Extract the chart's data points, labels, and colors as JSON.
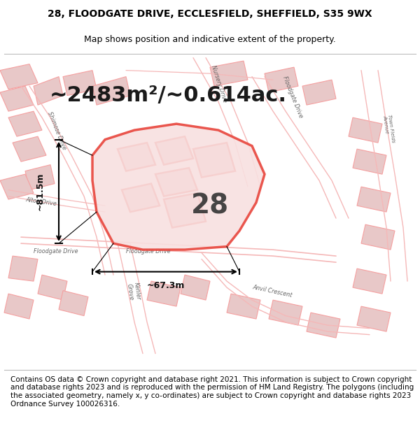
{
  "title_line1": "28, FLOODGATE DRIVE, ECCLESFIELD, SHEFFIELD, S35 9WX",
  "title_line2": "Map shows position and indicative extent of the property.",
  "area_text": "~2483m²/~0.614ac.",
  "label_number": "28",
  "dim_vertical": "~81.5m",
  "dim_horizontal": "~67.3m",
  "footer_text": "Contains OS data © Crown copyright and database right 2021. This information is subject to Crown copyright and database rights 2023 and is reproduced with the permission of HM Land Registry. The polygons (including the associated geometry, namely x, y co-ordinates) are subject to Crown copyright and database rights 2023 Ordnance Survey 100026316.",
  "bg_color": "#f0ece4",
  "road_color": "#f5b8b8",
  "highlight_color": "#e8453c",
  "building_fill": "#e8c8c8",
  "building_line": "#f5a0a0",
  "title_fontsize": 10,
  "subtitle_fontsize": 9,
  "area_fontsize": 22,
  "label_fontsize": 28,
  "footer_fontsize": 7.5
}
